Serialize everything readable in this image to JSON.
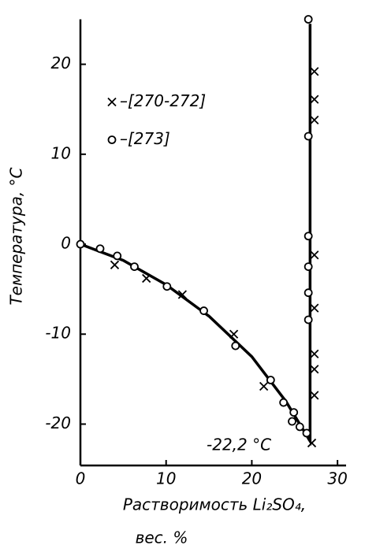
{
  "chart_data": {
    "type": "scatter",
    "y_label": "Температура, °С",
    "x_label": [
      "Растворимость Li₂SO₄,",
      "вес. %"
    ],
    "annotation": "-22,2 °С",
    "xlim": [
      0,
      31
    ],
    "ylim": [
      -24.6,
      25
    ],
    "xticks": [
      0,
      10,
      20,
      30
    ],
    "yticks": [
      -20,
      -10,
      0,
      10,
      20
    ],
    "grid": false,
    "legend": "upper left",
    "series": [
      {
        "name": "–[270-272]",
        "marker": "x",
        "color": "#000000",
        "x": [
          4.0,
          7.7,
          11.9,
          17.9,
          21.4,
          27.3,
          27.3,
          27.3,
          27.3,
          27.3,
          27.3,
          27.3,
          27.3,
          27.0
        ],
        "y": [
          -2.3,
          -3.8,
          -5.6,
          -10.0,
          -15.8,
          19.2,
          16.1,
          13.8,
          -1.2,
          -7.1,
          -12.2,
          -13.9,
          -16.8,
          -22.1
        ]
      },
      {
        "name": "–[273]",
        "marker": "o",
        "color": "#000000",
        "x": [
          0,
          2.3,
          4.3,
          6.3,
          10.1,
          14.4,
          18.1,
          22.2,
          23.7,
          24.9,
          24.7,
          25.6,
          26.4,
          26.6,
          26.6,
          26.6,
          26.6,
          26.6,
          26.6
        ],
        "y": [
          0,
          -0.5,
          -1.3,
          -2.5,
          -4.7,
          -7.4,
          -11.3,
          -15.1,
          -17.6,
          -18.7,
          -19.7,
          -20.3,
          -21.0,
          25,
          12.0,
          0.9,
          -2.5,
          -5.4,
          -8.4
        ]
      }
    ],
    "curve": {
      "color": "#000000",
      "x": [
        0,
        5,
        10,
        15,
        20,
        24,
        26.8,
        26.8
      ],
      "y": [
        0,
        -1.8,
        -4.5,
        -8.0,
        -12.5,
        -17.5,
        -21.9,
        24.5
      ]
    }
  }
}
